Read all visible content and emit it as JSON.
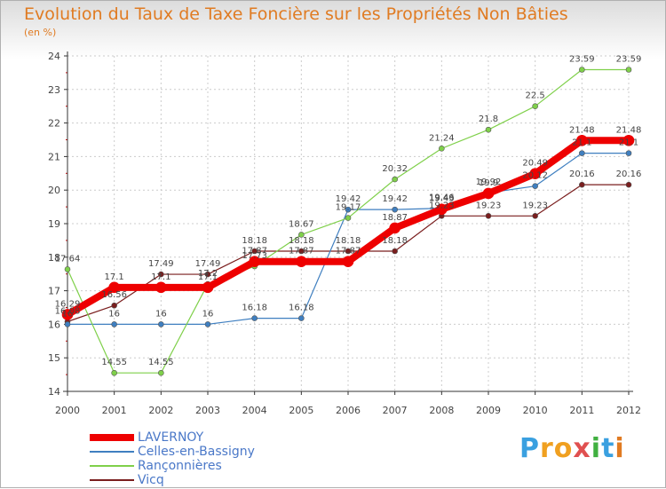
{
  "chart_data": {
    "type": "line",
    "title": "Evolution du Taux de Taxe Foncière sur les Propriétés Non Bâties",
    "ylabel": "(en %)",
    "xlabel": "",
    "x": [
      "2000",
      "2001",
      "2002",
      "2003",
      "2004",
      "2005",
      "2006",
      "2007",
      "2008",
      "2009",
      "2010",
      "2011",
      "2012"
    ],
    "ylim": [
      14,
      24
    ],
    "yticks": [
      "14",
      "15",
      "16",
      "17",
      "18",
      "19",
      "20",
      "21",
      "22",
      "23",
      "24"
    ],
    "series": [
      {
        "name": "Vicq",
        "color": "#7a1e1e",
        "line_class": "thin",
        "values": [
          16.08,
          16.56,
          17.49,
          17.49,
          18.18,
          18.18,
          18.18,
          18.18,
          19.23,
          19.23,
          19.23,
          20.16,
          20.16
        ],
        "labels": [
          "16.08",
          "16.56",
          "17.49",
          "17.49",
          "18.18",
          "18.18",
          "18.18",
          "18.18",
          "19.23",
          "19.23",
          "19.23",
          "20.16",
          "20.16"
        ]
      },
      {
        "name": "Celles-en-Bassigny",
        "color": "#3f7fc0",
        "line_class": "thin",
        "values": [
          16,
          16,
          16,
          16,
          16.18,
          16.18,
          19.42,
          19.42,
          19.46,
          19.92,
          20.12,
          21.1,
          21.1
        ],
        "labels": [
          "16",
          "16",
          "16",
          "16",
          "16.18",
          "16.18",
          "19.42",
          "19.42",
          "19.46",
          "19.92",
          "20.12",
          "21.1",
          "21.1"
        ]
      },
      {
        "name": "Rançonnières",
        "color": "#7fd04a",
        "line_class": "thin",
        "values": [
          17.64,
          14.55,
          14.55,
          17.2,
          17.73,
          18.67,
          19.17,
          20.32,
          21.24,
          21.8,
          22.5,
          23.59,
          23.59
        ],
        "labels": [
          "17.64",
          "14.55",
          "14.55",
          "17.2",
          "17.73",
          "18.67",
          "19.17",
          "20.32",
          "21.24",
          "21.8",
          "22.5",
          "23.59",
          "23.59"
        ]
      },
      {
        "name": "LAVERNOY",
        "color": "#ee0000",
        "line_class": "thick",
        "values": [
          16.29,
          17.1,
          17.1,
          17.1,
          17.87,
          17.87,
          17.87,
          18.87,
          19.43,
          19.9,
          20.49,
          21.48,
          21.48
        ],
        "labels": [
          "16.29",
          "17.1",
          "17.1",
          "17.1",
          "17.87",
          "17.87",
          "17.87",
          "18.87",
          "19.43",
          "19.9",
          "20.49",
          "21.48",
          "21.48"
        ]
      }
    ],
    "legend": [
      "LAVERNOY",
      "Celles-en-Bassigny",
      "Rançonnières",
      "Vicq"
    ],
    "legend_position": "bottom-left"
  },
  "brand": {
    "text": "Proxiti",
    "letters": [
      "P",
      "r",
      "o",
      "x",
      "i",
      "t",
      "i"
    ],
    "colors": [
      "#3aa0e0",
      "#f0a020",
      "#f0a020",
      "#e05050",
      "#40b040",
      "#3aa0e0",
      "#e07b22"
    ]
  }
}
